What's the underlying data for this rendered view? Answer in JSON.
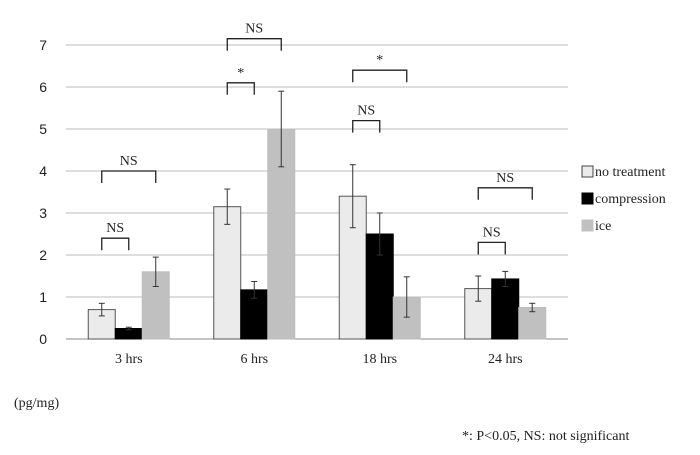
{
  "chart_data": {
    "type": "bar",
    "categories": [
      "3 hrs",
      "6 hrs",
      "18 hrs",
      "24 hrs"
    ],
    "series": [
      {
        "name": "no treatment",
        "color": "#ebebeb",
        "values": [
          0.7,
          3.15,
          3.4,
          1.2
        ],
        "errors": [
          0.15,
          0.42,
          0.75,
          0.3
        ]
      },
      {
        "name": "compression",
        "color": "#000000",
        "values": [
          0.25,
          1.17,
          2.5,
          1.43
        ],
        "errors": [
          0.03,
          0.2,
          0.5,
          0.18
        ]
      },
      {
        "name": "ice",
        "color": "#c0c0c0",
        "values": [
          1.6,
          5.0,
          1.0,
          0.75
        ],
        "errors": [
          0.35,
          0.9,
          0.48,
          0.1
        ]
      }
    ],
    "ylim": [
      0,
      7
    ],
    "yticks": [
      0,
      1,
      2,
      3,
      4,
      5,
      6,
      7
    ],
    "grid": true,
    "legend_position": "right",
    "ylabel": "(pg/mg)",
    "xlabel": "",
    "title": "",
    "annotations": [
      {
        "category": 0,
        "from_series": 0,
        "to_series": 1,
        "label": "NS",
        "y": 2.4
      },
      {
        "category": 0,
        "from_series": 0,
        "to_series": 2,
        "label": "NS",
        "y": 4.0
      },
      {
        "category": 1,
        "from_series": 0,
        "to_series": 1,
        "label": "*",
        "y": 6.1
      },
      {
        "category": 1,
        "from_series": 0,
        "to_series": 2,
        "label": "NS",
        "y": 7.15
      },
      {
        "category": 2,
        "from_series": 0,
        "to_series": 1,
        "label": "NS",
        "y": 5.2
      },
      {
        "category": 2,
        "from_series": 0,
        "to_series": 2,
        "label": "*",
        "y": 6.4
      },
      {
        "category": 3,
        "from_series": 0,
        "to_series": 1,
        "label": "NS",
        "y": 2.3
      },
      {
        "category": 3,
        "from_series": 0,
        "to_series": 2,
        "label": "NS",
        "y": 3.6
      }
    ]
  },
  "footnote": "*: P<0.05, NS: not significant"
}
